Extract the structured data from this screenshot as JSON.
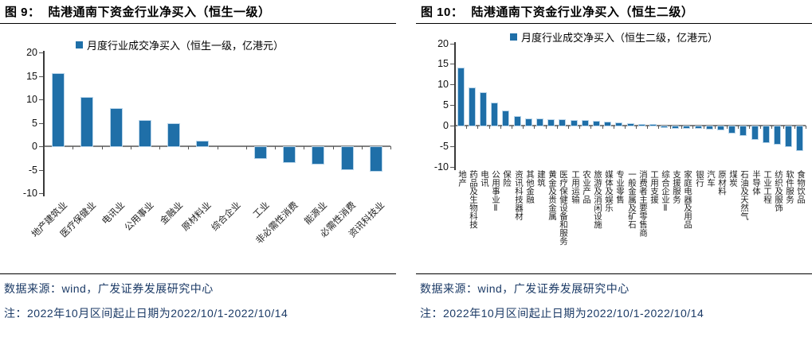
{
  "colors": {
    "bar_fill": "#1F6FA8",
    "bar_edge": "#B9D5EA",
    "zero_line": "#808080",
    "axis_line": "#3A3A3A",
    "title_text": "#000000",
    "footer_text": "#1B3A66"
  },
  "panels": [
    {
      "figure_label": "图 9：",
      "title": "陆港通南下资金行业净买入（恒生一级）",
      "source_line": "数据来源：wind，广发证券发展研究中心",
      "note_line": "注：2022年10月区间起止日期为2022/10/1-2022/10/14"
    },
    {
      "figure_label": "图 10：",
      "title": "陆港通南下资金行业净买入（恒生二级）",
      "source_line": "数据来源：wind，广发证券发展研究中心",
      "note_line": "注：2022年10月区间起止日期为2022/10/1-2022/10/14"
    }
  ],
  "chart_data": [
    {
      "type": "bar",
      "title": "陆港通南下资金行业净买入（恒生一级）",
      "legend": "月度行业成交净买入（恒生一级，亿港元）",
      "legend_position": "top",
      "grid": false,
      "ylim": [
        -10,
        20
      ],
      "yticks": [
        20,
        15,
        10,
        5,
        0,
        -5,
        -10
      ],
      "categories": [
        "地产建筑业",
        "医疗保健业",
        "电讯业",
        "公用事业",
        "金融业",
        "原材料业",
        "综合企业",
        "工业",
        "非必需性消费",
        "能源业",
        "必需性消费",
        "资讯科技业"
      ],
      "values": [
        15.5,
        10.3,
        8.0,
        5.4,
        4.7,
        1.1,
        0.0,
        -2.4,
        -3.3,
        -3.6,
        -4.7,
        -5.0
      ]
    },
    {
      "type": "bar",
      "title": "陆港通南下资金行业净买入（恒生二级）",
      "legend": "月度行业成交净买入（恒生二级，亿港元）",
      "legend_position": "top",
      "grid": false,
      "ylim": [
        -10,
        20
      ],
      "yticks": [
        20,
        15,
        10,
        5,
        0,
        -5,
        -10
      ],
      "categories": [
        "地产",
        "药品及生物科技",
        "电讯",
        "公用事业Ⅱ",
        "保险",
        "资讯科技器材",
        "其他金融",
        "建筑",
        "黄金及贵金属",
        "医疗保健设备和服务",
        "工用运输",
        "农业产品",
        "旅游及消闲设施",
        "媒体及娱乐",
        "专业零售",
        "一般金属及矿石",
        "消费者主要零售商",
        "工用支援",
        "综合企业Ⅱ",
        "支援服务",
        "家庭电器及用品",
        "银行",
        "汽车",
        "原材料",
        "煤炭",
        "石油及天然气",
        "半导体",
        "工业工程",
        "纺织及服饰",
        "软件服务",
        "食物饮品"
      ],
      "values": [
        14.0,
        9.0,
        8.0,
        5.5,
        3.4,
        2.2,
        1.6,
        1.5,
        1.4,
        1.3,
        1.2,
        1.1,
        1.0,
        0.8,
        0.6,
        0.4,
        0.2,
        0.1,
        -0.2,
        -0.3,
        -0.3,
        -0.4,
        -0.5,
        -0.8,
        -1.5,
        -2.2,
        -3.0,
        -3.8,
        -4.3,
        -4.8,
        -5.8
      ]
    }
  ]
}
